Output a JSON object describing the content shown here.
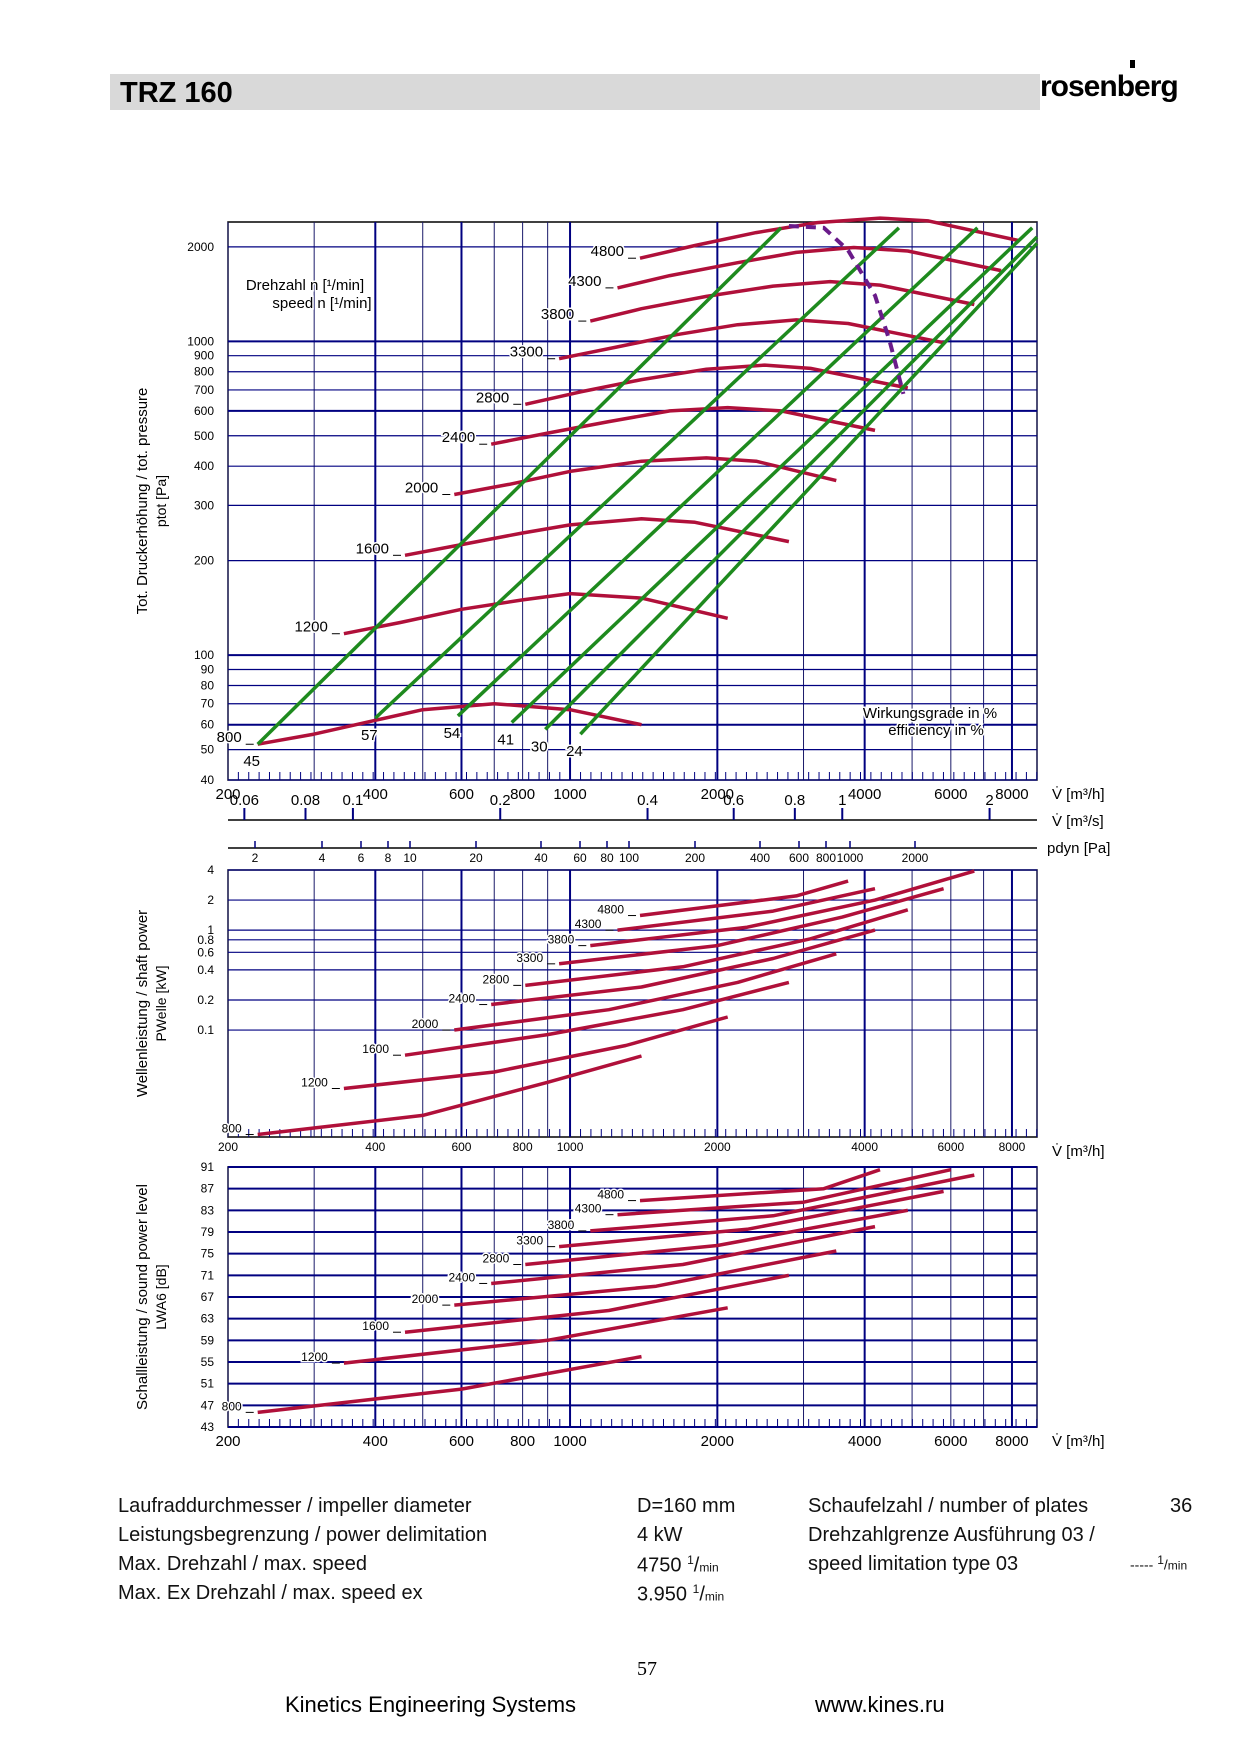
{
  "header": {
    "title": "TRZ 160",
    "brand": "rosenberg"
  },
  "colors": {
    "curve": "#b0103a",
    "efficiency": "#1e8a1e",
    "grid": "#000080",
    "limit": "#6a1b8a"
  },
  "chart_data": [
    {
      "type": "line",
      "name": "pressure",
      "y_axis_title": "Tot. Druckerhöhung / tot. pressure",
      "y_axis_symbol": "ptot [Pa]",
      "x_label": "V̇ [m³/h]",
      "x_label2": "V̇ [m³/s]",
      "x_label3": "pdyn [Pa]",
      "xlim": [
        200,
        9000
      ],
      "ylim": [
        40,
        2400
      ],
      "x_scale": "log",
      "y_scale": "log",
      "grid": true,
      "x_ticks": [
        200,
        400,
        600,
        800,
        1000,
        2000,
        4000,
        6000,
        8000
      ],
      "x_tick_labels": [
        "200",
        "400",
        "600",
        "800",
        "1000",
        "2000",
        "4000",
        "6000",
        "8000"
      ],
      "y_ticks": [
        40,
        50,
        60,
        70,
        80,
        90,
        100,
        200,
        300,
        400,
        500,
        600,
        700,
        800,
        900,
        1000,
        2000
      ],
      "y_tick_labels": [
        "40",
        "50",
        "60",
        "70",
        "80",
        "90",
        "100",
        "200",
        "300",
        "400",
        "500",
        "600",
        "700",
        "800",
        "900",
        "1000",
        "2000"
      ],
      "m3s_ticks": [
        0.06,
        0.08,
        0.1,
        0.2,
        0.4,
        0.6,
        0.8,
        1,
        2
      ],
      "m3s_tick_labels": [
        "0.06",
        "0.08",
        "0.1",
        "0.2",
        "0.4",
        "0.6",
        "0.8",
        "1",
        "2"
      ],
      "pdyn_ticks": [
        {
          "v": 2,
          "x": 255
        },
        {
          "v": 4,
          "x": 322
        },
        {
          "v": 6,
          "x": 361
        },
        {
          "v": 8,
          "x": 388
        },
        {
          "v": 10,
          "x": 410
        },
        {
          "v": 20,
          "x": 476
        },
        {
          "v": 40,
          "x": 541
        },
        {
          "v": 60,
          "x": 580
        },
        {
          "v": 80,
          "x": 607
        },
        {
          "v": 100,
          "x": 629
        },
        {
          "v": 200,
          "x": 695
        },
        {
          "v": 400,
          "x": 760
        },
        {
          "v": 600,
          "x": 799
        },
        {
          "v": 800,
          "x": 826
        },
        {
          "v": 1000,
          "x": 850
        },
        {
          "v": 2000,
          "x": 915
        }
      ],
      "legend_title_de": "Drehzahl n [¹/min]",
      "legend_title_en": "speed n [¹/min]",
      "efficiency_title_de": "Wirkungsgrade in %",
      "efficiency_title_en": "efficiency in %",
      "speeds": [
        {
          "label": "800",
          "x": [
            230,
            300,
            400,
            500,
            700,
            1000,
            1400
          ],
          "y": [
            52,
            56,
            62,
            67,
            70,
            67,
            60
          ]
        },
        {
          "label": "1200",
          "x": [
            345,
            450,
            600,
            800,
            1000,
            1400,
            2100
          ],
          "y": [
            117,
            127,
            140,
            150,
            157,
            152,
            131
          ]
        },
        {
          "label": "1600",
          "x": [
            460,
            600,
            800,
            1000,
            1400,
            1800,
            2800
          ],
          "y": [
            208,
            225,
            245,
            260,
            272,
            265,
            230
          ]
        },
        {
          "label": "2000",
          "x": [
            580,
            750,
            1000,
            1400,
            1900,
            2400,
            3500
          ],
          "y": [
            325,
            350,
            385,
            415,
            425,
            415,
            360
          ]
        },
        {
          "label": "2400",
          "x": [
            690,
            900,
            1200,
            1600,
            2100,
            2700,
            4200
          ],
          "y": [
            470,
            510,
            555,
            600,
            615,
            600,
            520
          ]
        },
        {
          "label": "2800",
          "x": [
            810,
            1050,
            1400,
            1900,
            2500,
            3100,
            4900
          ],
          "y": [
            630,
            690,
            755,
            815,
            840,
            820,
            710
          ]
        },
        {
          "label": "3300",
          "x": [
            950,
            1250,
            1650,
            2200,
            2900,
            3700,
            5800
          ],
          "y": [
            880,
            960,
            1050,
            1130,
            1170,
            1140,
            990
          ]
        },
        {
          "label": "3800",
          "x": [
            1100,
            1400,
            1900,
            2600,
            3400,
            4300,
            6700
          ],
          "y": [
            1160,
            1270,
            1390,
            1500,
            1550,
            1510,
            1310
          ]
        },
        {
          "label": "4300",
          "x": [
            1250,
            1600,
            2200,
            2900,
            3800,
            4900,
            7600
          ],
          "y": [
            1480,
            1620,
            1780,
            1920,
            1990,
            1940,
            1680
          ]
        },
        {
          "label": "4800",
          "x": [
            1390,
            1800,
            2400,
            3200,
            4300,
            5400,
            8300
          ],
          "y": [
            1840,
            2020,
            2220,
            2390,
            2470,
            2420,
            2090
          ]
        }
      ],
      "efficiency_lines": [
        {
          "label": "45",
          "x": [
            230,
            2700
          ],
          "y": [
            52,
            2300
          ]
        },
        {
          "label": "57",
          "x": [
            400,
            4700
          ],
          "y": [
            63,
            2300
          ]
        },
        {
          "label": "54",
          "x": [
            590,
            6800
          ],
          "y": [
            64,
            2300
          ]
        },
        {
          "label": "41",
          "x": [
            760,
            8800
          ],
          "y": [
            61,
            2300
          ]
        },
        {
          "label": "30",
          "x": [
            890,
            10000
          ],
          "y": [
            58,
            2150
          ]
        },
        {
          "label": "24",
          "x": [
            1050,
            12000
          ],
          "y": [
            56,
            2050
          ]
        }
      ],
      "speed_limit": {
        "x": [
          2800,
          3300,
          3700,
          4200,
          4500,
          4800
        ],
        "y": [
          2330,
          2300,
          1950,
          1400,
          1000,
          680
        ]
      }
    },
    {
      "type": "line",
      "name": "shaft_power",
      "y_axis_title": "Wellenleistung / shaft power",
      "y_axis_symbol": "PWelle [kW]",
      "x_label": "V̇ [m³/h]",
      "xlim": [
        200,
        9000
      ],
      "ylim": [
        0.0085,
        4
      ],
      "x_scale": "log",
      "y_scale": "log",
      "x_tick_labels": [
        "200",
        "400",
        "600",
        "800",
        "1000",
        "2000",
        "4000",
        "6000",
        "8000"
      ],
      "y_ticks": [
        4,
        2,
        1,
        0.8,
        0.6,
        0.4,
        0.2,
        0.1
      ],
      "y_tick_labels": [
        "4",
        "2",
        "1",
        "0.8",
        "0.6",
        "0.4",
        "0.2",
        "0.1"
      ],
      "speeds": [
        {
          "label": "800",
          "x": [
            230,
            500,
            900,
            1400
          ],
          "y": [
            0.009,
            0.014,
            0.03,
            0.055
          ]
        },
        {
          "label": "1200",
          "x": [
            345,
            700,
            1300,
            2100
          ],
          "y": [
            0.026,
            0.038,
            0.07,
            0.135
          ]
        },
        {
          "label": "1600",
          "x": [
            460,
            900,
            1700,
            2800
          ],
          "y": [
            0.056,
            0.09,
            0.16,
            0.3
          ]
        },
        {
          "label": "2000",
          "x": [
            580,
            1200,
            2200,
            3500
          ],
          "y": [
            0.1,
            0.16,
            0.3,
            0.58
          ]
        },
        {
          "label": "2400",
          "x": [
            690,
            1400,
            2600,
            4200
          ],
          "y": [
            0.18,
            0.27,
            0.52,
            1.0
          ]
        },
        {
          "label": "2800",
          "x": [
            810,
            1700,
            3100,
            4900
          ],
          "y": [
            0.28,
            0.43,
            0.82,
            1.6
          ]
        },
        {
          "label": "3300",
          "x": [
            950,
            2000,
            3600,
            5800
          ],
          "y": [
            0.46,
            0.7,
            1.35,
            2.6
          ]
        },
        {
          "label": "3800",
          "x": [
            1100,
            2300,
            4200,
            6700
          ],
          "y": [
            0.7,
            1.07,
            2.0,
            3.9
          ]
        },
        {
          "label": "4300",
          "x": [
            1250,
            2600,
            4200
          ],
          "y": [
            1.0,
            1.55,
            2.6
          ]
        },
        {
          "label": "4800",
          "x": [
            1390,
            2900,
            3700
          ],
          "y": [
            1.4,
            2.2,
            3.1
          ]
        }
      ]
    },
    {
      "type": "line",
      "name": "sound_power",
      "y_axis_title": "Schallleistung / sound power level",
      "y_axis_symbol": "LWA6 [dB]",
      "x_label": "V̇ [m³/h]",
      "xlim": [
        200,
        9000
      ],
      "ylim": [
        43,
        91
      ],
      "x_scale": "log",
      "y_scale": "linear",
      "x_tick_labels": [
        "200",
        "400",
        "600",
        "800",
        "1000",
        "2000",
        "4000",
        "6000",
        "8000"
      ],
      "y_ticks": [
        91,
        87,
        83,
        79,
        75,
        71,
        67,
        63,
        59,
        55,
        51,
        47,
        43
      ],
      "y_tick_labels": [
        "91",
        "87",
        "83",
        "79",
        "75",
        "71",
        "67",
        "63",
        "59",
        "55",
        "51",
        "47",
        "43"
      ],
      "speeds": [
        {
          "label": "800",
          "x": [
            230,
            600,
            1400
          ],
          "y": [
            45.7,
            50,
            56
          ]
        },
        {
          "label": "1200",
          "x": [
            345,
            900,
            2100
          ],
          "y": [
            54.8,
            59,
            65
          ]
        },
        {
          "label": "1600",
          "x": [
            460,
            1200,
            2800
          ],
          "y": [
            60.5,
            64.5,
            71
          ]
        },
        {
          "label": "2000",
          "x": [
            580,
            1500,
            3500
          ],
          "y": [
            65.5,
            69,
            75.5
          ]
        },
        {
          "label": "2400",
          "x": [
            690,
            1700,
            4200
          ],
          "y": [
            69.5,
            73,
            80
          ]
        },
        {
          "label": "2800",
          "x": [
            810,
            2000,
            4900
          ],
          "y": [
            73,
            76.5,
            83
          ]
        },
        {
          "label": "3300",
          "x": [
            950,
            2300,
            5800
          ],
          "y": [
            76.3,
            79.5,
            86.5
          ]
        },
        {
          "label": "3800",
          "x": [
            1100,
            2600,
            6700
          ],
          "y": [
            79.2,
            82,
            89.5
          ]
        },
        {
          "label": "4300",
          "x": [
            1250,
            3000,
            6000
          ],
          "y": [
            82.2,
            84.5,
            90.5
          ]
        },
        {
          "label": "4800",
          "x": [
            1390,
            3300,
            4300
          ],
          "y": [
            84.8,
            87,
            90.5
          ]
        }
      ]
    }
  ],
  "specs": {
    "impeller_label": "Laufraddurchmesser / impeller diameter",
    "impeller_value": "D=160 mm",
    "power_label": "Leistungsbegrenzung / power delimitation",
    "power_value": "4 kW",
    "maxspeed_label": "Max. Drehzahl / max. speed",
    "maxspeed_value": "4750",
    "maxex_label": "Max. Ex Drehzahl / max. speed ex",
    "maxex_value": "3.950",
    "plates_label": "Schaufelzahl / number of plates",
    "plates_value": "36",
    "limit_label1": "Drehzahlgrenze Ausführung 03 /",
    "limit_label2": "speed limitation type 03",
    "limit_value": "-----"
  },
  "footer": {
    "page_number": "57",
    "company": "Kinetics Engineering Systems",
    "website": "www.kines.ru"
  }
}
